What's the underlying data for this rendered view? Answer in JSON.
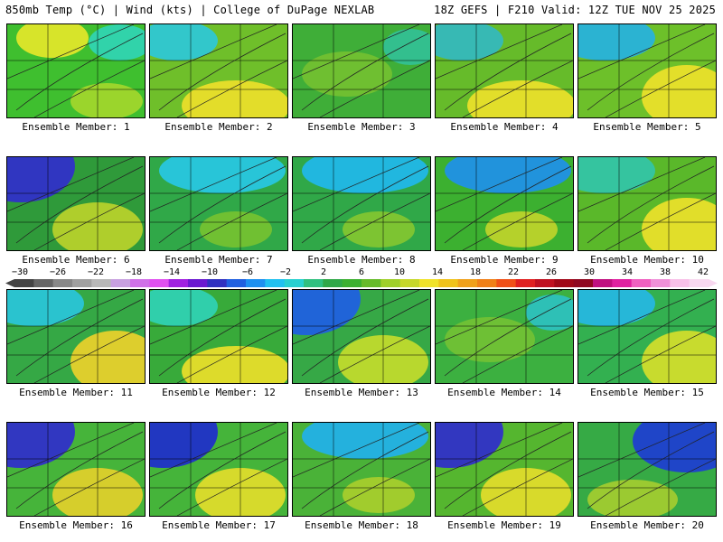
{
  "header": {
    "left": "850mb Temp (°C) | Wind (kts) | College of DuPage NEXLAB",
    "right": "18Z GEFS | F210 Valid: 12Z TUE NOV 25 2025"
  },
  "members": [
    {
      "label": "Ensemble Member: 1",
      "base": "#3fbf2f",
      "warm": "#e8e82a",
      "cool": "#2fd6c0",
      "style": "warmN"
    },
    {
      "label": "Ensemble Member: 2",
      "base": "#6fbf2a",
      "warm": "#f0e02a",
      "cool": "#28c8e8",
      "style": "warmS"
    },
    {
      "label": "Ensemble Member: 3",
      "base": "#3fae38",
      "warm": "#9fd02a",
      "cool": "#2fc6b4",
      "style": "flat"
    },
    {
      "label": "Ensemble Member: 4",
      "base": "#66bb2a",
      "warm": "#f0e22a",
      "cool": "#2fb8cc",
      "style": "warmS"
    },
    {
      "label": "Ensemble Member: 5",
      "base": "#6dc02a",
      "warm": "#f0e22a",
      "cool": "#20b0f0",
      "style": "warmSE"
    },
    {
      "label": "Ensemble Member: 6",
      "base": "#2f9a3a",
      "warm": "#c6d72a",
      "cool": "#3030c8",
      "style": "coldNW"
    },
    {
      "label": "Ensemble Member: 7",
      "base": "#30a848",
      "warm": "#8ccb2a",
      "cool": "#28c8e8",
      "style": "coolN"
    },
    {
      "label": "Ensemble Member: 8",
      "base": "#30a848",
      "warm": "#9ed02a",
      "cool": "#20b8f0",
      "style": "coolN"
    },
    {
      "label": "Ensemble Member: 9",
      "base": "#3cb030",
      "warm": "#e8e02a",
      "cool": "#1e90f0",
      "style": "coolN"
    },
    {
      "label": "Ensemble Member: 10",
      "base": "#5ab82a",
      "warm": "#f0e22a",
      "cool": "#2fc6b4",
      "style": "warmSE"
    },
    {
      "label": "Ensemble Member: 11",
      "base": "#35a845",
      "warm": "#f0d22a",
      "cool": "#28c8e8",
      "style": "warmSE"
    },
    {
      "label": "Ensemble Member: 12",
      "base": "#38aa3a",
      "warm": "#f0e02a",
      "cool": "#2fd6c0",
      "style": "warmS"
    },
    {
      "label": "Ensemble Member: 13",
      "base": "#36a846",
      "warm": "#cfe02a",
      "cool": "#2060e0",
      "style": "coldNW"
    },
    {
      "label": "Ensemble Member: 14",
      "base": "#3cb040",
      "warm": "#9fd02a",
      "cool": "#28c8e8",
      "style": "flat"
    },
    {
      "label": "Ensemble Member: 15",
      "base": "#33b050",
      "warm": "#d8e02a",
      "cool": "#24b8f0",
      "style": "warmSE"
    },
    {
      "label": "Ensemble Member: 16",
      "base": "#46b43a",
      "warm": "#f0d22a",
      "cool": "#3030c8",
      "style": "coldNW"
    },
    {
      "label": "Ensemble Member: 17",
      "base": "#45b43a",
      "warm": "#f0e02a",
      "cool": "#2030c8",
      "style": "coldNW"
    },
    {
      "label": "Ensemble Member: 18",
      "base": "#4ab238",
      "warm": "#c6d72a",
      "cool": "#20b0f0",
      "style": "coolN"
    },
    {
      "label": "Ensemble Member: 19",
      "base": "#55b62f",
      "warm": "#f0e02a",
      "cool": "#3030c8",
      "style": "coldNW"
    },
    {
      "label": "Ensemble Member: 20",
      "base": "#36aa45",
      "warm": "#c6d72a",
      "cool": "#1f3fd0",
      "style": "coldNE"
    }
  ],
  "legend": {
    "ticks": [
      "−30",
      "−26",
      "−22",
      "−18",
      "−14",
      "−10",
      "−6",
      "−2",
      "2",
      "6",
      "10",
      "14",
      "18",
      "22",
      "26",
      "30",
      "34",
      "38",
      "42"
    ],
    "colors": [
      "#444444",
      "#666666",
      "#888888",
      "#a0a0a0",
      "#b8b8b8",
      "#c8a0e0",
      "#d070e8",
      "#e050f0",
      "#a020e0",
      "#6a18d0",
      "#3030c0",
      "#2060e0",
      "#1e90f0",
      "#20c0f0",
      "#28d0d0",
      "#30c080",
      "#30a848",
      "#3cb030",
      "#66bb2a",
      "#9fd02a",
      "#c6d72a",
      "#f0e22a",
      "#f0c21a",
      "#f0a01a",
      "#f08018",
      "#f05018",
      "#e02020",
      "#c01020",
      "#a00818",
      "#900820",
      "#c01080",
      "#e020a0",
      "#f060c0",
      "#f090d8",
      "#f8c0e8",
      "#f8d8f0"
    ]
  }
}
